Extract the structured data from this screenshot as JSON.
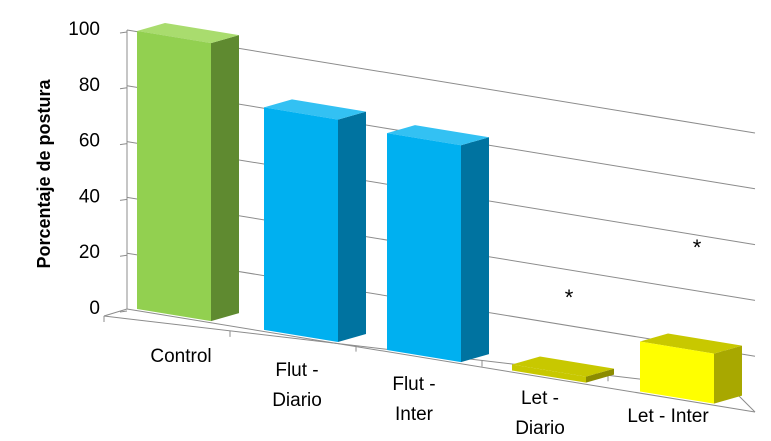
{
  "chart_data": {
    "type": "bar",
    "title": "",
    "xlabel": "",
    "ylabel": "Porcentaje de postura",
    "ylim": [
      0,
      100
    ],
    "yticks": [
      "0",
      "20",
      "40",
      "60",
      "80",
      "100"
    ],
    "grid": true,
    "categories": [
      [
        "Control"
      ],
      [
        "Flut -",
        "Diario"
      ],
      [
        "Flut -",
        "Inter"
      ],
      [
        "Let -",
        "Diario"
      ],
      [
        "Let - Inter"
      ]
    ],
    "values": [
      100,
      80,
      78,
      2,
      18
    ],
    "annotations": [
      "",
      "",
      "",
      "*",
      "*"
    ],
    "colors": [
      {
        "front": "#92d050",
        "side": "#5f8a30",
        "top": "#a9dc6e"
      },
      {
        "front": "#00b0f0",
        "side": "#0073a0",
        "top": "#33c1f3"
      },
      {
        "front": "#00b0f0",
        "side": "#0073a0",
        "top": "#33c1f3"
      },
      {
        "front": "#c8c800",
        "side": "#8c8c00",
        "top": "#c8c800"
      },
      {
        "front": "#ffff00",
        "side": "#a8a800",
        "top": "#c8c800"
      }
    ]
  }
}
